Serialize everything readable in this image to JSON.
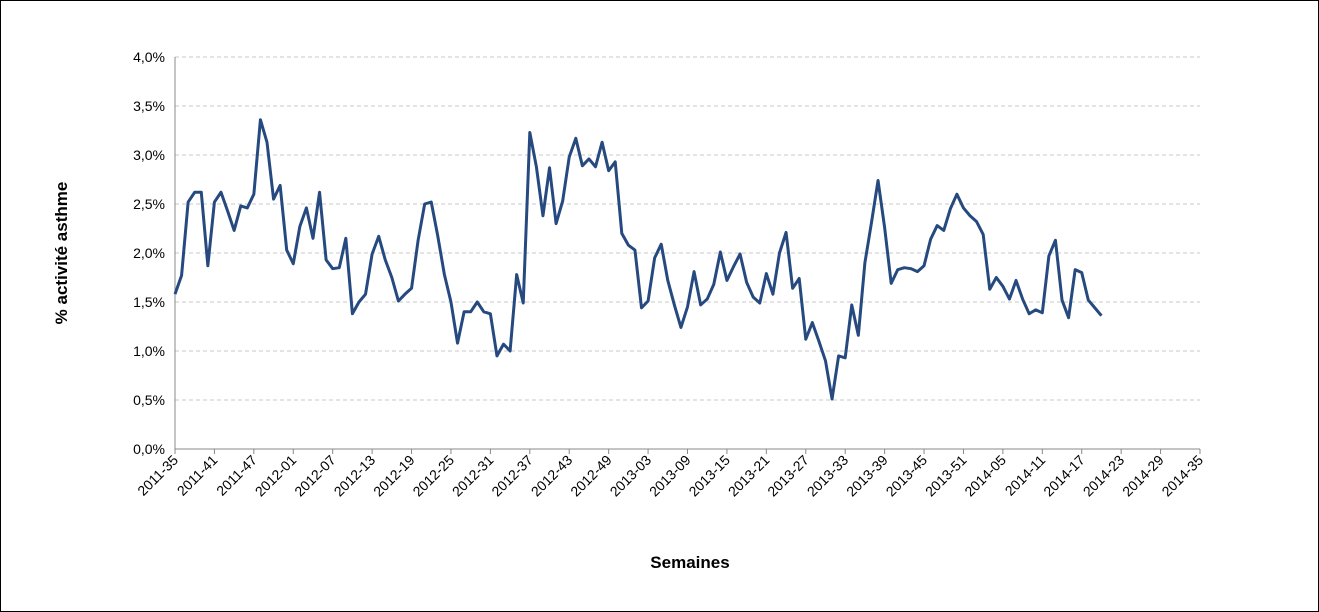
{
  "chart_data": {
    "type": "line",
    "x_label": "Semaines",
    "y_label": "% activité asthme",
    "color": "#264a7f",
    "grid": true,
    "ylim": [
      0,
      4
    ],
    "yticks": [
      {
        "value": 0,
        "label": "0,0%"
      },
      {
        "value": 0.5,
        "label": "0,5%"
      },
      {
        "value": 1,
        "label": "1,0%"
      },
      {
        "value": 1.5,
        "label": "1,5%"
      },
      {
        "value": 2,
        "label": "2,0%"
      },
      {
        "value": 2.5,
        "label": "2,5%"
      },
      {
        "value": 3,
        "label": "3,0%"
      },
      {
        "value": 3.5,
        "label": "3,5%"
      },
      {
        "value": 4,
        "label": "4,0%"
      }
    ],
    "categories": [
      "2011-35",
      null,
      null,
      null,
      null,
      null,
      "2011-41",
      null,
      null,
      null,
      null,
      null,
      "2011-47",
      null,
      null,
      null,
      null,
      null,
      "2012-01",
      null,
      null,
      null,
      null,
      null,
      "2012-07",
      null,
      null,
      null,
      null,
      null,
      "2012-13",
      null,
      null,
      null,
      null,
      null,
      "2012-19",
      null,
      null,
      null,
      null,
      null,
      "2012-25",
      null,
      null,
      null,
      null,
      null,
      "2012-31",
      null,
      null,
      null,
      null,
      null,
      "2012-37",
      null,
      null,
      null,
      null,
      null,
      "2012-43",
      null,
      null,
      null,
      null,
      null,
      "2012-49",
      null,
      null,
      null,
      null,
      null,
      "2013-03",
      null,
      null,
      null,
      null,
      null,
      "2013-09",
      null,
      null,
      null,
      null,
      null,
      "2013-15",
      null,
      null,
      null,
      null,
      null,
      "2013-21",
      null,
      null,
      null,
      null,
      null,
      "2013-27",
      null,
      null,
      null,
      null,
      null,
      "2013-33",
      null,
      null,
      null,
      null,
      null,
      "2013-39",
      null,
      null,
      null,
      null,
      null,
      "2013-45",
      null,
      null,
      null,
      null,
      null,
      "2013-51",
      null,
      null,
      null,
      null,
      null,
      "2014-05",
      null,
      null,
      null,
      null,
      null,
      "2014-11",
      null,
      null,
      null,
      null,
      null,
      "2014-17",
      null,
      null,
      null,
      null,
      null,
      "2014-23",
      null,
      null,
      null,
      null,
      null,
      "2014-29",
      null,
      null,
      null,
      null,
      null,
      "2014-35"
    ],
    "values": [
      1.58,
      1.77,
      2.52,
      2.62,
      2.62,
      1.87,
      2.52,
      2.62,
      2.43,
      2.23,
      2.48,
      2.46,
      2.6,
      3.36,
      3.13,
      2.55,
      2.69,
      2.03,
      1.89,
      2.27,
      2.46,
      2.15,
      2.62,
      1.93,
      1.84,
      1.85,
      2.15,
      1.38,
      1.5,
      1.58,
      1.99,
      2.17,
      1.93,
      1.75,
      1.51,
      1.58,
      1.64,
      2.13,
      2.5,
      2.52,
      2.17,
      1.78,
      1.5,
      1.08,
      1.4,
      1.4,
      1.5,
      1.4,
      1.38,
      0.95,
      1.07,
      1.0,
      1.78,
      1.49,
      3.23,
      2.88,
      2.38,
      2.87,
      2.3,
      2.53,
      2.98,
      3.17,
      2.89,
      2.96,
      2.88,
      3.13,
      2.84,
      2.93,
      2.2,
      2.08,
      2.03,
      1.44,
      1.51,
      1.95,
      2.09,
      1.72,
      1.47,
      1.24,
      1.45,
      1.81,
      1.47,
      1.53,
      1.68,
      2.01,
      1.72,
      1.86,
      1.99,
      1.7,
      1.55,
      1.49,
      1.79,
      1.58,
      2.0,
      2.21,
      1.64,
      1.74,
      1.12,
      1.29,
      1.1,
      0.9,
      0.51,
      0.95,
      0.93,
      1.47,
      1.16,
      1.9,
      2.31,
      2.74,
      2.26,
      1.69,
      1.83,
      1.85,
      1.84,
      1.81,
      1.87,
      2.14,
      2.28,
      2.23,
      2.45,
      2.6,
      2.46,
      2.38,
      2.32,
      2.19,
      1.63,
      1.75,
      1.66,
      1.53,
      1.72,
      1.53,
      1.38,
      1.42,
      1.39,
      1.97,
      2.13,
      1.52,
      1.34,
      1.83,
      1.8,
      1.52,
      1.44,
      1.36,
      null,
      null,
      null,
      null,
      null,
      null,
      null,
      null,
      null,
      null,
      null,
      null,
      null,
      null,
      null
    ]
  }
}
